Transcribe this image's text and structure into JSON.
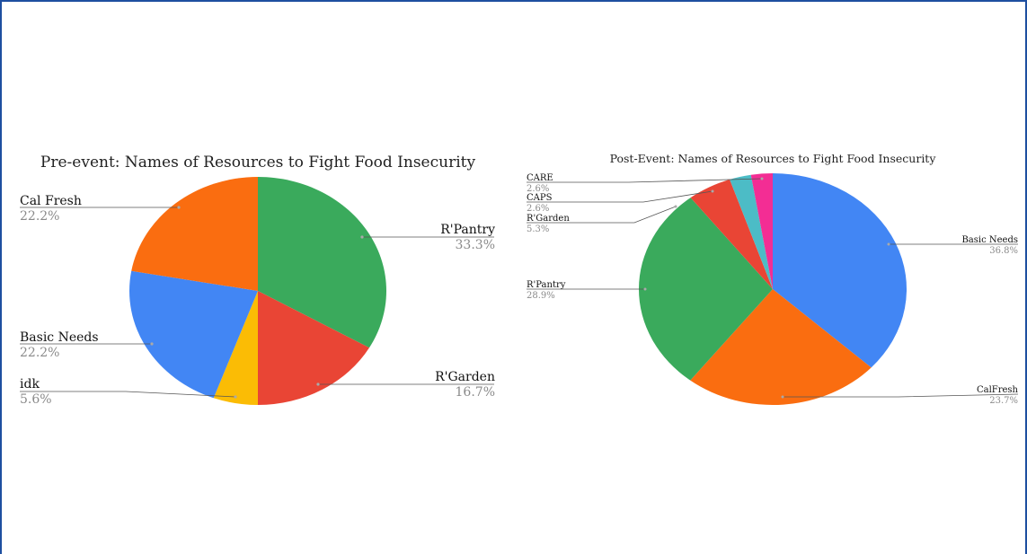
{
  "colors": {
    "green": "#3aaa5c",
    "red": "#e94535",
    "yellow": "#fbbc05",
    "blue": "#4286f4",
    "orange": "#fa6d10",
    "teal": "#4cbcc6",
    "pink": "#f32d94",
    "frame": "#1e4fa0"
  },
  "chart_data": [
    {
      "type": "pie",
      "title": "Pre-event: Names of Resources to Fight Food Insecurity",
      "legend": "none",
      "slices": [
        {
          "label": "R'Pantry",
          "value": 33.3,
          "display": "33.3%",
          "color": "#3aaa5c"
        },
        {
          "label": "R'Garden",
          "value": 16.7,
          "display": "16.7%",
          "color": "#e94535"
        },
        {
          "label": "idk",
          "value": 5.6,
          "display": "5.6%",
          "color": "#fbbc05"
        },
        {
          "label": "Basic Needs",
          "value": 22.2,
          "display": "22.2%",
          "color": "#4286f4"
        },
        {
          "label": "Cal Fresh",
          "value": 22.2,
          "display": "22.2%",
          "color": "#fa6d10"
        }
      ]
    },
    {
      "type": "pie",
      "title": "Post-Event: Names of Resources to Fight Food Insecurity",
      "legend": "none",
      "slices": [
        {
          "label": "Basic Needs",
          "value": 36.8,
          "display": "36.8%",
          "color": "#4286f4"
        },
        {
          "label": "CalFresh",
          "value": 23.7,
          "display": "23.7%",
          "color": "#fa6d10"
        },
        {
          "label": "R'Pantry",
          "value": 28.9,
          "display": "28.9%",
          "color": "#3aaa5c"
        },
        {
          "label": "R'Garden",
          "value": 5.3,
          "display": "5.3%",
          "color": "#e94535"
        },
        {
          "label": "CAPS",
          "value": 2.6,
          "display": "2.6%",
          "color": "#4cbcc6"
        },
        {
          "label": "CARE",
          "value": 2.6,
          "display": "2.6%",
          "color": "#f32d94"
        }
      ]
    }
  ]
}
